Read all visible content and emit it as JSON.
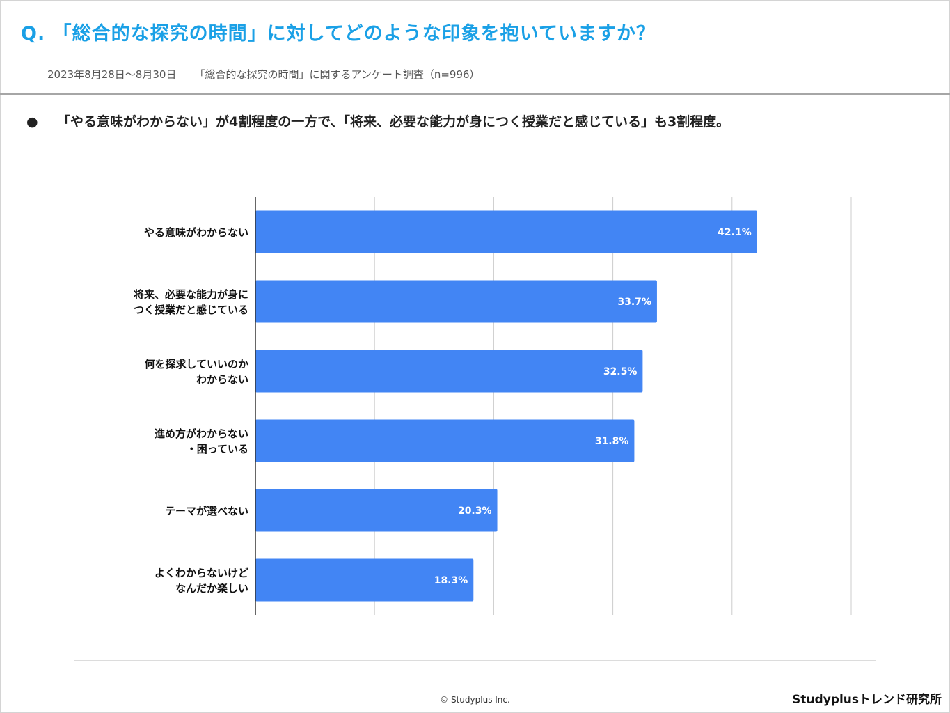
{
  "header": {
    "question": "Q. 「総合的な探究の時間」に対してどのような印象を抱いていますか？",
    "date_range": "2023年8月28日〜8月30日",
    "survey": "「総合的な探究の時間」に関するアンケート調査（n=996）"
  },
  "summary": {
    "bullet": "●",
    "text": "「やる意味がわからない」が4割程度の一方で、「将来、必要な能力が身につく授業だと感じている」も3割程度。"
  },
  "chart_data": {
    "type": "bar",
    "orientation": "horizontal",
    "categories": [
      [
        "やる意味がわからない"
      ],
      [
        "将来、必要な能力が身に",
        "つく授業だと感じている"
      ],
      [
        "何を探求していいのか",
        "わからない"
      ],
      [
        "進め方がわからない",
        "・困っている"
      ],
      [
        "テーマが選べない"
      ],
      [
        "よくわからないけど",
        "なんだか楽しい"
      ]
    ],
    "values": [
      42.1,
      33.7,
      32.5,
      31.8,
      20.3,
      18.3
    ],
    "value_labels": [
      "42.1%",
      "33.7%",
      "32.5%",
      "31.8%",
      "20.3%",
      "18.3%"
    ],
    "xlim": [
      0,
      50
    ],
    "grid": true,
    "bar_color": "#4285f4",
    "label_color": "#ffffff"
  },
  "footer": {
    "copyright": "© Studyplus Inc.",
    "brand": "Studyplusトレンド研究所"
  }
}
